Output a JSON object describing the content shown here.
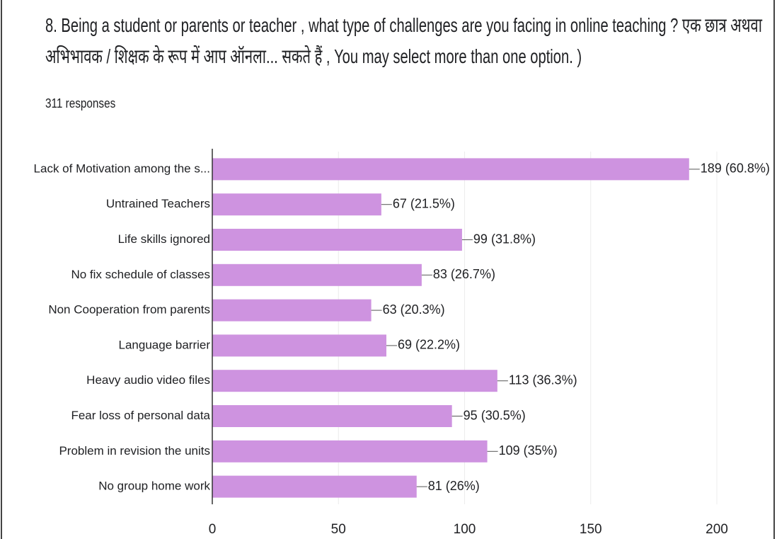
{
  "chart_data": {
    "type": "bar",
    "orientation": "horizontal",
    "title": "8. Being a student or parents or teacher , what type of challenges are you facing in online teaching ? एक छात्र अथवा अभिभावक / शिक्षक के रूप में आप ऑनला... सकते हैं , You may select more than one option. )",
    "subtitle": "311 responses",
    "categories": [
      "Lack of Motivation among the s...",
      "Untrained Teachers",
      "Life skills ignored",
      "No fix schedule of classes",
      "Non Cooperation from parents",
      "Language barrier",
      "Heavy audio video files",
      "Fear loss of personal data",
      "Problem in revision the units",
      "No group home work"
    ],
    "values": [
      189,
      67,
      99,
      83,
      63,
      69,
      113,
      95,
      109,
      81
    ],
    "value_labels": [
      "189 (60.8%)",
      "67 (21.5%)",
      "99 (31.8%)",
      "83 (26.7%)",
      "63 (20.3%)",
      "69 (22.2%)",
      "113 (36.3%)",
      "95 (30.5%)",
      "109 (35%)",
      "81 (26%)"
    ],
    "color": "#ce93e0",
    "xlim": [
      0,
      200
    ],
    "xticks": [
      0,
      50,
      100,
      150,
      200
    ],
    "grid": true
  }
}
